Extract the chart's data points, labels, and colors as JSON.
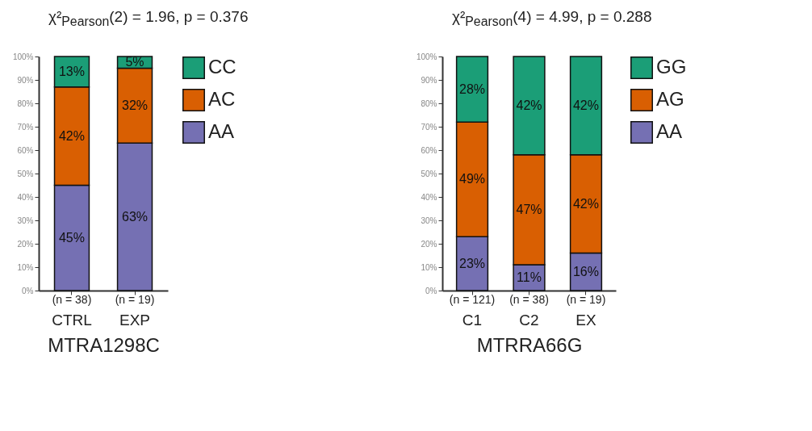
{
  "chart_data": [
    {
      "type": "bar",
      "stacked": true,
      "title": "χ²$_{Pearson}$(2) = 1.96, p = 0.376",
      "xlabel": "MTRA1298C",
      "categories": [
        "CTRL",
        "EXP"
      ],
      "series": [
        {
          "name": "AA",
          "color": "#7570b3",
          "values": [
            45,
            63
          ],
          "value_labels": [
            "45%",
            "63%"
          ]
        },
        {
          "name": "AC",
          "color": "#d95f02",
          "values": [
            42,
            32
          ],
          "value_labels": [
            "42%",
            "32%"
          ]
        },
        {
          "name": "CC",
          "color": "#1b9e77",
          "values": [
            13,
            5
          ],
          "value_labels": [
            "13%",
            "5%"
          ]
        }
      ],
      "ylim": [
        0,
        100
      ],
      "yticks": [
        {
          "value": 0,
          "label": "0%"
        },
        {
          "value": 10,
          "label": "10%"
        },
        {
          "value": 20,
          "label": "20%"
        },
        {
          "value": 30,
          "label": "30%"
        },
        {
          "value": 40,
          "label": "40%"
        },
        {
          "value": 50,
          "label": "50%"
        },
        {
          "value": 60,
          "label": "60%"
        },
        {
          "value": 70,
          "label": "70%"
        },
        {
          "value": 80,
          "label": "80%"
        },
        {
          "value": 90,
          "label": "90%"
        },
        {
          "value": 100,
          "label": "100%"
        }
      ],
      "annotations": [
        "(n = 38)",
        "(n = 19)"
      ],
      "legend": "right",
      "grid": false
    },
    {
      "type": "bar",
      "stacked": true,
      "title": "χ²$_{Pearson}$(4) = 4.99, p = 0.288",
      "xlabel": "MTRRA66G",
      "categories": [
        "C1",
        "C2",
        "EX"
      ],
      "series": [
        {
          "name": "AA",
          "color": "#7570b3",
          "values": [
            23,
            11,
            16
          ],
          "value_labels": [
            "23%",
            "11%",
            "16%"
          ]
        },
        {
          "name": "AG",
          "color": "#d95f02",
          "values": [
            49,
            47,
            42
          ],
          "value_labels": [
            "49%",
            "47%",
            "42%"
          ]
        },
        {
          "name": "GG",
          "color": "#1b9e77",
          "values": [
            28,
            42,
            42
          ],
          "value_labels": [
            "28%",
            "42%",
            "42%"
          ]
        }
      ],
      "ylim": [
        0,
        100
      ],
      "yticks": [
        {
          "value": 0,
          "label": "0%"
        },
        {
          "value": 10,
          "label": "10%"
        },
        {
          "value": 20,
          "label": "20%"
        },
        {
          "value": 30,
          "label": "30%"
        },
        {
          "value": 40,
          "label": "40%"
        },
        {
          "value": 50,
          "label": "50%"
        },
        {
          "value": 60,
          "label": "60%"
        },
        {
          "value": 70,
          "label": "70%"
        },
        {
          "value": 80,
          "label": "80%"
        },
        {
          "value": 90,
          "label": "90%"
        },
        {
          "value": 100,
          "label": "100%"
        }
      ],
      "annotations": [
        "(n = 121)",
        "(n = 38)",
        "(n = 19)"
      ],
      "legend": "right",
      "grid": false
    }
  ]
}
